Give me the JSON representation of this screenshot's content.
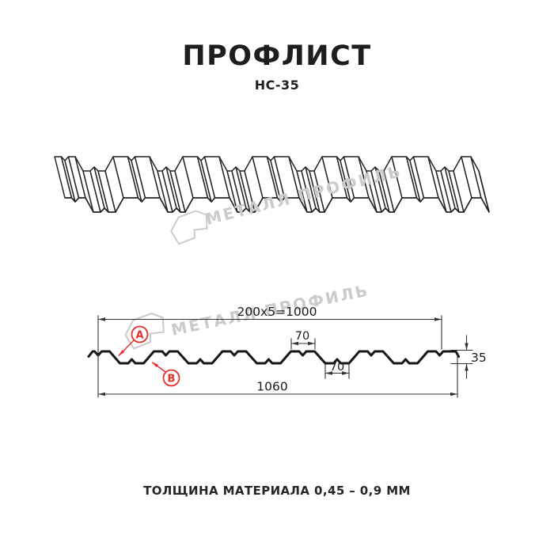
{
  "header": {
    "title": "ПРОФЛИСТ",
    "subtitle": "НС-35"
  },
  "watermark": {
    "text": "МЕТАЛЛ ПРОФИЛЬ",
    "color": "#cbcbcb"
  },
  "section": {
    "dim_coverage": "200x5=1000",
    "dim_rib_top": "70",
    "dim_rib_bottom": "70",
    "dim_overall": "1060",
    "dim_height": "35",
    "callout_a": "А",
    "callout_b": "В"
  },
  "colors": {
    "line": "#1c1c1c",
    "red": "#e4302a"
  },
  "footer": {
    "note": "ТОЛЩИНА МАТЕРИАЛА 0,45 – 0,9 ММ"
  }
}
